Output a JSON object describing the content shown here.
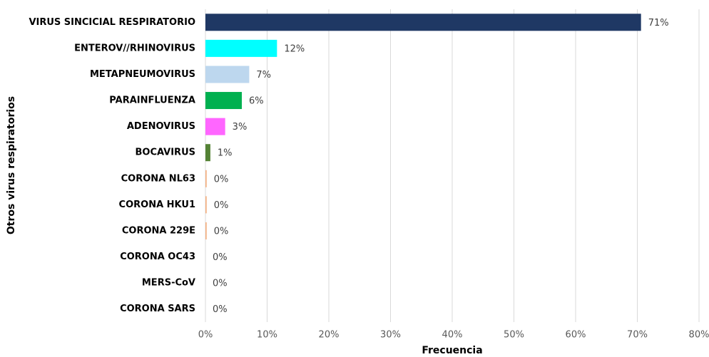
{
  "chart_data": {
    "type": "barh",
    "x_label": "Frecuencia",
    "y_label": "Otros virus respiratorios",
    "categories": [
      "VIRUS SINCICIAL RESPIRATORIO",
      "ENTEROV//RHINOVIRUS",
      "METAPNEUMOVIRUS",
      "PARAINFLUENZA",
      "ADENOVIRUS",
      "BOCAVIRUS",
      "CORONA NL63",
      "CORONA HKU1",
      "CORONA 229E",
      "CORONA OC43",
      "MERS-CoV",
      "CORONA SARS"
    ],
    "values": [
      70.6,
      11.6,
      7.1,
      5.9,
      3.2,
      0.8,
      0.2,
      0.2,
      0.2,
      0,
      0,
      0
    ],
    "value_labels": [
      "71%",
      "12%",
      "7%",
      "6%",
      "3%",
      "1%",
      "0%",
      "0%",
      "0%",
      "0%",
      "0%",
      "0%"
    ],
    "colors": [
      "#1f3864",
      "#00ffff",
      "#bdd7ee",
      "#00b050",
      "#ff66ff",
      "#548235",
      "#f4b183",
      "#f4b183",
      "#f4b183",
      "#d9d9d9",
      "#d9d9d9",
      "#d9d9d9"
    ],
    "xlim": [
      0,
      80
    ],
    "xticks": [
      {
        "value": 0,
        "label": "0%"
      },
      {
        "value": 10,
        "label": "10%"
      },
      {
        "value": 20,
        "label": "20%"
      },
      {
        "value": 30,
        "label": "30%"
      },
      {
        "value": 40,
        "label": "40%"
      },
      {
        "value": 50,
        "label": "50%"
      },
      {
        "value": 60,
        "label": "60%"
      },
      {
        "value": 70,
        "label": "70%"
      },
      {
        "value": 80,
        "label": "80%"
      }
    ],
    "grid": true
  }
}
